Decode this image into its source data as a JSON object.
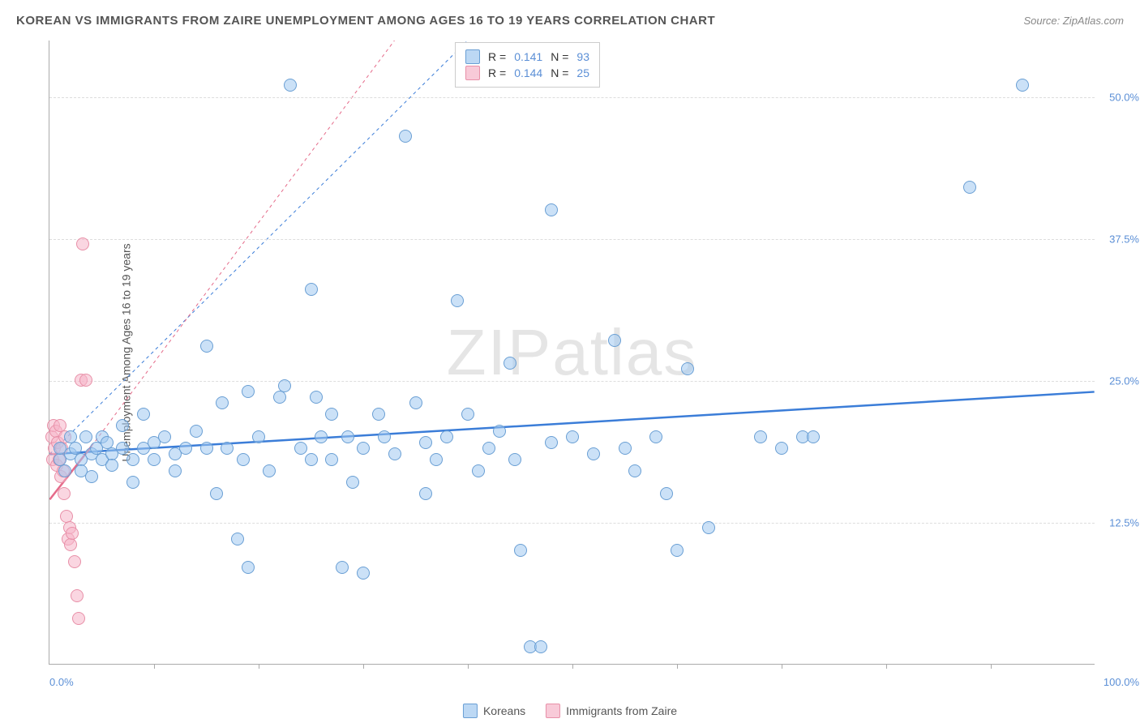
{
  "header": {
    "title": "KOREAN VS IMMIGRANTS FROM ZAIRE UNEMPLOYMENT AMONG AGES 16 TO 19 YEARS CORRELATION CHART",
    "source": "Source: ZipAtlas.com"
  },
  "watermark": "ZIPatlas",
  "chart": {
    "type": "scatter",
    "background_color": "#ffffff",
    "grid_color": "#dddddd",
    "axis_color": "#aaaaaa",
    "tick_label_color": "#5b8fd6",
    "yaxis_title": "Unemployment Among Ages 16 to 19 years",
    "xlim": [
      0,
      100
    ],
    "ylim": [
      0,
      55
    ],
    "ygrid": [
      {
        "value": 12.5,
        "label": "12.5%"
      },
      {
        "value": 25.0,
        "label": "25.0%"
      },
      {
        "value": 37.5,
        "label": "37.5%"
      },
      {
        "value": 50.0,
        "label": "50.0%"
      }
    ],
    "xticks": [
      10,
      20,
      30,
      40,
      50,
      60,
      70,
      80,
      90
    ],
    "xaxis_left_label": "0.0%",
    "xaxis_right_label": "100.0%",
    "series": {
      "blue": {
        "name": "Koreans",
        "marker_fill": "rgba(160,200,240,0.55)",
        "marker_stroke": "#6a9fd4",
        "marker_size": 16,
        "R": "0.141",
        "N": "93",
        "trend": {
          "x1": 0,
          "y1": 18.5,
          "x2": 100,
          "y2": 24.0,
          "dashed": {
            "x1": 0,
            "y1": 18.5,
            "x2": 40,
            "y2": 55
          },
          "color": "#3b7dd8",
          "width": 2.5
        },
        "points": [
          [
            1,
            18
          ],
          [
            1,
            19
          ],
          [
            1.5,
            17
          ],
          [
            2,
            20
          ],
          [
            2,
            18.5
          ],
          [
            2.5,
            19
          ],
          [
            3,
            18
          ],
          [
            3,
            17
          ],
          [
            3.5,
            20
          ],
          [
            4,
            18.5
          ],
          [
            4,
            16.5
          ],
          [
            4.5,
            19
          ],
          [
            5,
            18
          ],
          [
            5,
            20
          ],
          [
            5.5,
            19.5
          ],
          [
            6,
            18.5
          ],
          [
            6,
            17.5
          ],
          [
            7,
            19
          ],
          [
            7,
            21
          ],
          [
            8,
            18
          ],
          [
            8,
            16
          ],
          [
            9,
            19
          ],
          [
            9,
            22
          ],
          [
            10,
            19.5
          ],
          [
            10,
            18
          ],
          [
            11,
            20
          ],
          [
            12,
            18.5
          ],
          [
            12,
            17
          ],
          [
            13,
            19
          ],
          [
            14,
            20.5
          ],
          [
            15,
            19
          ],
          [
            15,
            28
          ],
          [
            16,
            15
          ],
          [
            16.5,
            23
          ],
          [
            17,
            19
          ],
          [
            18,
            11
          ],
          [
            18.5,
            18
          ],
          [
            19,
            8.5
          ],
          [
            19,
            24
          ],
          [
            20,
            20
          ],
          [
            21,
            17
          ],
          [
            22,
            23.5
          ],
          [
            22.5,
            24.5
          ],
          [
            23,
            51
          ],
          [
            24,
            19
          ],
          [
            25,
            18
          ],
          [
            25,
            33
          ],
          [
            25.5,
            23.5
          ],
          [
            26,
            20
          ],
          [
            27,
            22
          ],
          [
            27,
            18
          ],
          [
            28,
            8.5
          ],
          [
            28.5,
            20
          ],
          [
            29,
            16
          ],
          [
            30,
            8
          ],
          [
            30,
            19
          ],
          [
            31.5,
            22
          ],
          [
            32,
            20
          ],
          [
            33,
            18.5
          ],
          [
            34,
            46.5
          ],
          [
            35,
            23
          ],
          [
            36,
            15
          ],
          [
            36,
            19.5
          ],
          [
            37,
            18
          ],
          [
            38,
            20
          ],
          [
            39,
            32
          ],
          [
            40,
            22
          ],
          [
            41,
            17
          ],
          [
            42,
            19
          ],
          [
            43,
            20.5
          ],
          [
            44,
            26.5
          ],
          [
            44.5,
            18
          ],
          [
            45,
            10
          ],
          [
            46,
            1.5
          ],
          [
            47,
            1.5
          ],
          [
            48,
            19.5
          ],
          [
            48,
            40
          ],
          [
            50,
            20
          ],
          [
            52,
            18.5
          ],
          [
            54,
            28.5
          ],
          [
            55,
            19
          ],
          [
            56,
            17
          ],
          [
            58,
            20
          ],
          [
            59,
            15
          ],
          [
            60,
            10
          ],
          [
            61,
            26
          ],
          [
            63,
            12
          ],
          [
            68,
            20
          ],
          [
            70,
            19
          ],
          [
            72,
            20
          ],
          [
            73,
            20
          ],
          [
            88,
            42
          ],
          [
            93,
            51
          ]
        ]
      },
      "pink": {
        "name": "Immigrants from Zaire",
        "marker_fill": "rgba(245,180,200,0.55)",
        "marker_stroke": "#e890a8",
        "marker_size": 16,
        "R": "0.144",
        "N": "25",
        "trend": {
          "x1": 0,
          "y1": 14.5,
          "x2": 4,
          "y2": 19.2,
          "dashed": {
            "x1": 4,
            "y1": 19.2,
            "x2": 33,
            "y2": 55
          },
          "color": "#e56b8a",
          "width": 2.5
        },
        "points": [
          [
            0.2,
            20
          ],
          [
            0.3,
            18
          ],
          [
            0.4,
            21
          ],
          [
            0.5,
            19
          ],
          [
            0.6,
            20.5
          ],
          [
            0.7,
            17.5
          ],
          [
            0.8,
            19.5
          ],
          [
            0.9,
            18
          ],
          [
            1,
            21
          ],
          [
            1.1,
            16.5
          ],
          [
            1.2,
            19
          ],
          [
            1.3,
            17
          ],
          [
            1.4,
            15
          ],
          [
            1.5,
            20
          ],
          [
            1.6,
            13
          ],
          [
            1.8,
            11
          ],
          [
            1.9,
            12
          ],
          [
            2,
            10.5
          ],
          [
            2.2,
            11.5
          ],
          [
            2.4,
            9
          ],
          [
            2.6,
            6
          ],
          [
            2.8,
            4
          ],
          [
            3,
            25
          ],
          [
            3.2,
            37
          ],
          [
            3.5,
            25
          ]
        ]
      }
    },
    "legend_top": {
      "rlabel": "R =",
      "nlabel": "N ="
    },
    "legend_bottom": {
      "blue_label": "Koreans",
      "pink_label": "Immigrants from Zaire"
    }
  }
}
